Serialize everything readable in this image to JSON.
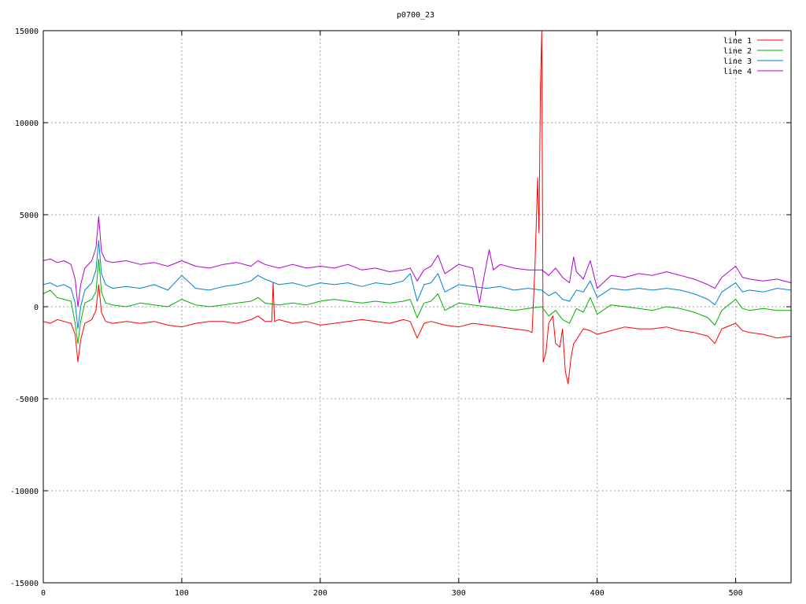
{
  "chart_data": {
    "type": "line",
    "title": "p0700_23",
    "xlim": [
      0,
      540
    ],
    "ylim": [
      -15000,
      15000
    ],
    "x_ticks": [
      0,
      100,
      200,
      300,
      400,
      500
    ],
    "y_ticks": [
      -15000,
      -10000,
      -5000,
      0,
      5000,
      10000,
      15000
    ],
    "grid": true,
    "legend_position": "top-right",
    "series": [
      {
        "name": "line 1",
        "color": "#ff0000",
        "points": [
          [
            0,
            -800
          ],
          [
            5,
            -900
          ],
          [
            10,
            -700
          ],
          [
            15,
            -800
          ],
          [
            20,
            -900
          ],
          [
            23,
            -1500
          ],
          [
            25,
            -3000
          ],
          [
            27,
            -1800
          ],
          [
            30,
            -900
          ],
          [
            35,
            -700
          ],
          [
            38,
            -200
          ],
          [
            40,
            1200
          ],
          [
            42,
            -300
          ],
          [
            45,
            -800
          ],
          [
            50,
            -900
          ],
          [
            60,
            -800
          ],
          [
            70,
            -900
          ],
          [
            80,
            -800
          ],
          [
            90,
            -1000
          ],
          [
            100,
            -1100
          ],
          [
            110,
            -900
          ],
          [
            120,
            -800
          ],
          [
            130,
            -800
          ],
          [
            140,
            -900
          ],
          [
            150,
            -700
          ],
          [
            155,
            -500
          ],
          [
            160,
            -800
          ],
          [
            165,
            -800
          ],
          [
            166,
            1300
          ],
          [
            167,
            -800
          ],
          [
            170,
            -700
          ],
          [
            180,
            -900
          ],
          [
            190,
            -800
          ],
          [
            200,
            -1000
          ],
          [
            210,
            -900
          ],
          [
            220,
            -800
          ],
          [
            230,
            -700
          ],
          [
            240,
            -800
          ],
          [
            250,
            -900
          ],
          [
            260,
            -700
          ],
          [
            265,
            -800
          ],
          [
            270,
            -1700
          ],
          [
            275,
            -900
          ],
          [
            280,
            -800
          ],
          [
            290,
            -1000
          ],
          [
            300,
            -1100
          ],
          [
            310,
            -900
          ],
          [
            320,
            -1000
          ],
          [
            330,
            -1100
          ],
          [
            340,
            -1200
          ],
          [
            350,
            -1300
          ],
          [
            353,
            -1400
          ],
          [
            355,
            2000
          ],
          [
            357,
            7000
          ],
          [
            358,
            4000
          ],
          [
            359,
            12000
          ],
          [
            360,
            15000
          ],
          [
            361,
            -3000
          ],
          [
            363,
            -2500
          ],
          [
            365,
            -900
          ],
          [
            368,
            -500
          ],
          [
            370,
            -2000
          ],
          [
            373,
            -2200
          ],
          [
            375,
            -1200
          ],
          [
            377,
            -3500
          ],
          [
            379,
            -4200
          ],
          [
            381,
            -2800
          ],
          [
            383,
            -2000
          ],
          [
            385,
            -1800
          ],
          [
            390,
            -1200
          ],
          [
            395,
            -1300
          ],
          [
            400,
            -1500
          ],
          [
            410,
            -1300
          ],
          [
            420,
            -1100
          ],
          [
            430,
            -1200
          ],
          [
            440,
            -1200
          ],
          [
            450,
            -1100
          ],
          [
            460,
            -1300
          ],
          [
            470,
            -1400
          ],
          [
            480,
            -1600
          ],
          [
            485,
            -2000
          ],
          [
            490,
            -1200
          ],
          [
            500,
            -900
          ],
          [
            505,
            -1300
          ],
          [
            510,
            -1400
          ],
          [
            520,
            -1500
          ],
          [
            530,
            -1700
          ],
          [
            540,
            -1600
          ]
        ]
      },
      {
        "name": "line 2",
        "color": "#00b000",
        "points": [
          [
            0,
            700
          ],
          [
            5,
            900
          ],
          [
            10,
            500
          ],
          [
            15,
            400
          ],
          [
            20,
            300
          ],
          [
            23,
            -900
          ],
          [
            25,
            -2000
          ],
          [
            27,
            -800
          ],
          [
            30,
            200
          ],
          [
            35,
            400
          ],
          [
            38,
            800
          ],
          [
            40,
            2600
          ],
          [
            42,
            800
          ],
          [
            45,
            200
          ],
          [
            50,
            100
          ],
          [
            60,
            0
          ],
          [
            70,
            200
          ],
          [
            80,
            100
          ],
          [
            90,
            0
          ],
          [
            100,
            400
          ],
          [
            110,
            100
          ],
          [
            120,
            0
          ],
          [
            130,
            100
          ],
          [
            140,
            200
          ],
          [
            150,
            300
          ],
          [
            155,
            500
          ],
          [
            160,
            200
          ],
          [
            170,
            100
          ],
          [
            180,
            200
          ],
          [
            190,
            100
          ],
          [
            200,
            300
          ],
          [
            210,
            400
          ],
          [
            220,
            300
          ],
          [
            230,
            200
          ],
          [
            240,
            300
          ],
          [
            250,
            200
          ],
          [
            260,
            300
          ],
          [
            265,
            400
          ],
          [
            270,
            -600
          ],
          [
            275,
            200
          ],
          [
            280,
            300
          ],
          [
            285,
            700
          ],
          [
            290,
            -200
          ],
          [
            300,
            200
          ],
          [
            310,
            100
          ],
          [
            320,
            0
          ],
          [
            330,
            -100
          ],
          [
            340,
            -200
          ],
          [
            350,
            -100
          ],
          [
            360,
            0
          ],
          [
            365,
            -500
          ],
          [
            370,
            -200
          ],
          [
            375,
            -700
          ],
          [
            380,
            -900
          ],
          [
            385,
            -100
          ],
          [
            390,
            -300
          ],
          [
            395,
            500
          ],
          [
            400,
            -400
          ],
          [
            410,
            100
          ],
          [
            420,
            0
          ],
          [
            430,
            -100
          ],
          [
            440,
            -200
          ],
          [
            450,
            0
          ],
          [
            460,
            -100
          ],
          [
            470,
            -300
          ],
          [
            480,
            -600
          ],
          [
            485,
            -1000
          ],
          [
            490,
            -200
          ],
          [
            500,
            400
          ],
          [
            505,
            -100
          ],
          [
            510,
            -200
          ],
          [
            520,
            -100
          ],
          [
            530,
            -200
          ],
          [
            540,
            -200
          ]
        ]
      },
      {
        "name": "line 3",
        "color": "#0080d0",
        "points": [
          [
            0,
            1200
          ],
          [
            5,
            1300
          ],
          [
            10,
            1100
          ],
          [
            15,
            1200
          ],
          [
            20,
            1000
          ],
          [
            23,
            200
          ],
          [
            25,
            -1200
          ],
          [
            27,
            0
          ],
          [
            30,
            900
          ],
          [
            35,
            1300
          ],
          [
            38,
            2000
          ],
          [
            40,
            3600
          ],
          [
            42,
            1800
          ],
          [
            45,
            1200
          ],
          [
            50,
            1000
          ],
          [
            60,
            1100
          ],
          [
            70,
            1000
          ],
          [
            80,
            1200
          ],
          [
            90,
            900
          ],
          [
            100,
            1700
          ],
          [
            110,
            1000
          ],
          [
            120,
            900
          ],
          [
            130,
            1100
          ],
          [
            140,
            1200
          ],
          [
            150,
            1400
          ],
          [
            155,
            1700
          ],
          [
            160,
            1500
          ],
          [
            170,
            1200
          ],
          [
            180,
            1300
          ],
          [
            190,
            1100
          ],
          [
            200,
            1300
          ],
          [
            210,
            1200
          ],
          [
            220,
            1300
          ],
          [
            230,
            1100
          ],
          [
            240,
            1300
          ],
          [
            250,
            1200
          ],
          [
            260,
            1400
          ],
          [
            265,
            1800
          ],
          [
            270,
            300
          ],
          [
            275,
            1200
          ],
          [
            280,
            1300
          ],
          [
            285,
            1800
          ],
          [
            290,
            800
          ],
          [
            300,
            1200
          ],
          [
            310,
            1100
          ],
          [
            320,
            1000
          ],
          [
            330,
            1100
          ],
          [
            340,
            900
          ],
          [
            350,
            1000
          ],
          [
            360,
            900
          ],
          [
            365,
            600
          ],
          [
            370,
            800
          ],
          [
            375,
            400
          ],
          [
            380,
            300
          ],
          [
            385,
            900
          ],
          [
            390,
            800
          ],
          [
            395,
            1400
          ],
          [
            400,
            500
          ],
          [
            410,
            1000
          ],
          [
            420,
            900
          ],
          [
            430,
            1000
          ],
          [
            440,
            900
          ],
          [
            450,
            1000
          ],
          [
            460,
            900
          ],
          [
            470,
            700
          ],
          [
            480,
            400
          ],
          [
            485,
            100
          ],
          [
            490,
            800
          ],
          [
            500,
            1300
          ],
          [
            505,
            800
          ],
          [
            510,
            900
          ],
          [
            520,
            800
          ],
          [
            530,
            1000
          ],
          [
            540,
            900
          ]
        ]
      },
      {
        "name": "line 4",
        "color": "#b000d0",
        "points": [
          [
            0,
            2500
          ],
          [
            5,
            2600
          ],
          [
            10,
            2400
          ],
          [
            15,
            2500
          ],
          [
            20,
            2300
          ],
          [
            23,
            1500
          ],
          [
            25,
            0
          ],
          [
            27,
            1200
          ],
          [
            30,
            2100
          ],
          [
            35,
            2500
          ],
          [
            38,
            3200
          ],
          [
            40,
            4900
          ],
          [
            42,
            3000
          ],
          [
            45,
            2500
          ],
          [
            50,
            2400
          ],
          [
            60,
            2500
          ],
          [
            70,
            2300
          ],
          [
            80,
            2400
          ],
          [
            90,
            2200
          ],
          [
            100,
            2500
          ],
          [
            110,
            2200
          ],
          [
            120,
            2100
          ],
          [
            130,
            2300
          ],
          [
            140,
            2400
          ],
          [
            150,
            2200
          ],
          [
            155,
            2500
          ],
          [
            160,
            2300
          ],
          [
            170,
            2100
          ],
          [
            180,
            2300
          ],
          [
            190,
            2100
          ],
          [
            200,
            2200
          ],
          [
            210,
            2100
          ],
          [
            220,
            2300
          ],
          [
            230,
            2000
          ],
          [
            240,
            2100
          ],
          [
            250,
            1900
          ],
          [
            260,
            2000
          ],
          [
            265,
            2100
          ],
          [
            270,
            1400
          ],
          [
            275,
            2000
          ],
          [
            280,
            2200
          ],
          [
            285,
            2800
          ],
          [
            290,
            1800
          ],
          [
            300,
            2300
          ],
          [
            310,
            2100
          ],
          [
            315,
            200
          ],
          [
            318,
            1500
          ],
          [
            322,
            3100
          ],
          [
            325,
            2000
          ],
          [
            330,
            2300
          ],
          [
            340,
            2100
          ],
          [
            350,
            2000
          ],
          [
            360,
            2000
          ],
          [
            365,
            1700
          ],
          [
            370,
            2100
          ],
          [
            375,
            1600
          ],
          [
            380,
            1300
          ],
          [
            383,
            2700
          ],
          [
            385,
            1900
          ],
          [
            390,
            1500
          ],
          [
            395,
            2500
          ],
          [
            400,
            1000
          ],
          [
            410,
            1700
          ],
          [
            420,
            1600
          ],
          [
            430,
            1800
          ],
          [
            440,
            1700
          ],
          [
            450,
            1900
          ],
          [
            460,
            1700
          ],
          [
            470,
            1500
          ],
          [
            480,
            1200
          ],
          [
            485,
            1000
          ],
          [
            490,
            1600
          ],
          [
            500,
            2200
          ],
          [
            505,
            1600
          ],
          [
            510,
            1500
          ],
          [
            520,
            1400
          ],
          [
            530,
            1500
          ],
          [
            540,
            1300
          ]
        ]
      }
    ]
  }
}
